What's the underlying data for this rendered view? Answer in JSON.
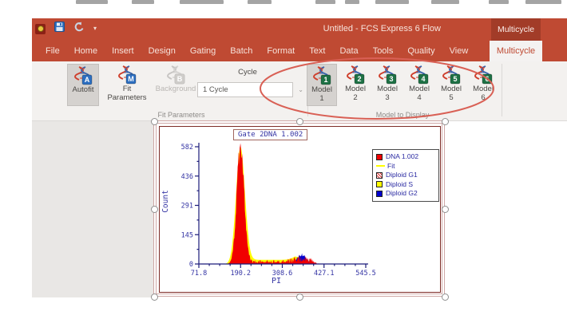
{
  "window": {
    "title": "Untitled - FCS Express 6 Flow",
    "contextual_tab": "Multicycle",
    "quick_access_icons": [
      "app-icon",
      "save-icon",
      "undo-icon",
      "customize-toolbar-caret"
    ]
  },
  "colors": {
    "titlebar": "#bf4a33",
    "contextual_header": "#a23c28",
    "ribbon_bg": "#f3f1ef",
    "annotation": "#d96055",
    "axis_navy": "#1b1b7a",
    "raw_red": "#f10000",
    "fit_yellow": "#ffff00",
    "g2_blue": "#0000cf"
  },
  "tabs": [
    {
      "label": "File"
    },
    {
      "label": "Home"
    },
    {
      "label": "Insert"
    },
    {
      "label": "Design"
    },
    {
      "label": "Gating"
    },
    {
      "label": "Batch"
    },
    {
      "label": "Format"
    },
    {
      "label": "Text"
    },
    {
      "label": "Data"
    },
    {
      "label": "Tools"
    },
    {
      "label": "Quality"
    },
    {
      "label": "View"
    },
    {
      "label": "Multicycle",
      "selected": true
    }
  ],
  "ribbon": {
    "fit_group_label": "Fit Parameters",
    "model_group_label": "Model to Display",
    "autofit": {
      "label": "Autofit",
      "badge": "A",
      "selected": true
    },
    "fit_parameters": {
      "label1": "Fit",
      "label2": "Parameters",
      "badge": "M"
    },
    "background": {
      "label": "Background",
      "badge": "B",
      "disabled": true
    },
    "cycle": {
      "label": "Cycle",
      "value": "1 Cycle"
    },
    "models": [
      {
        "label1": "Model",
        "label2": "1",
        "badge": "1",
        "selected": true
      },
      {
        "label1": "Model",
        "label2": "2",
        "badge": "2"
      },
      {
        "label1": "Model",
        "label2": "3",
        "badge": "3"
      },
      {
        "label1": "Model",
        "label2": "4",
        "badge": "4"
      },
      {
        "label1": "Model",
        "label2": "5",
        "badge": "5"
      },
      {
        "label1": "Model",
        "label2": "6",
        "badge": "6"
      }
    ]
  },
  "chart_data": {
    "type": "area",
    "title": "Gate 2DNA 1.002",
    "xlabel": "PI",
    "ylabel": "Count",
    "xlim": [
      71.8,
      545.5
    ],
    "ylim": [
      0,
      582
    ],
    "xticks": [
      "71.8",
      "190.2",
      "308.6",
      "427.1",
      "545.5"
    ],
    "yticks": [
      "0",
      "145",
      "291",
      "436",
      "582"
    ],
    "legend": [
      {
        "label": "DNA 1.002",
        "swatch": "red-fill"
      },
      {
        "label": "Fit",
        "swatch": "yellow-line"
      },
      {
        "label": "Diploid G1",
        "swatch": "red-hatch"
      },
      {
        "label": "Diploid S",
        "swatch": "yellow-fill"
      },
      {
        "label": "Diploid G2",
        "swatch": "blue-fill"
      }
    ],
    "series": [
      {
        "name": "Fit",
        "color": "#ffff00",
        "role": "fit-curve",
        "components": [
          {
            "kind": "gauss",
            "center": 190,
            "sd": 12.5,
            "amp": 583
          },
          {
            "kind": "plateau",
            "from": 198,
            "to": 360,
            "level": 21
          },
          {
            "kind": "gauss",
            "center": 363,
            "sd": 17,
            "amp": 30
          }
        ]
      },
      {
        "name": "Diploid G2",
        "color": "#0000cf",
        "role": "model-peak",
        "components": [
          {
            "kind": "gauss",
            "center": 363,
            "sd": 13,
            "amp": 44
          }
        ]
      },
      {
        "name": "DNA 1.002",
        "color": "#f10000",
        "role": "raw-histogram",
        "components": [
          {
            "kind": "gauss",
            "center": 190,
            "sd": 10.5,
            "amp": 575
          },
          {
            "kind": "noise-band",
            "from": 204,
            "to": 412,
            "base": 13,
            "g2bump": {
              "center": 363,
              "sd": 20,
              "amp": 18
            }
          }
        ]
      }
    ]
  }
}
